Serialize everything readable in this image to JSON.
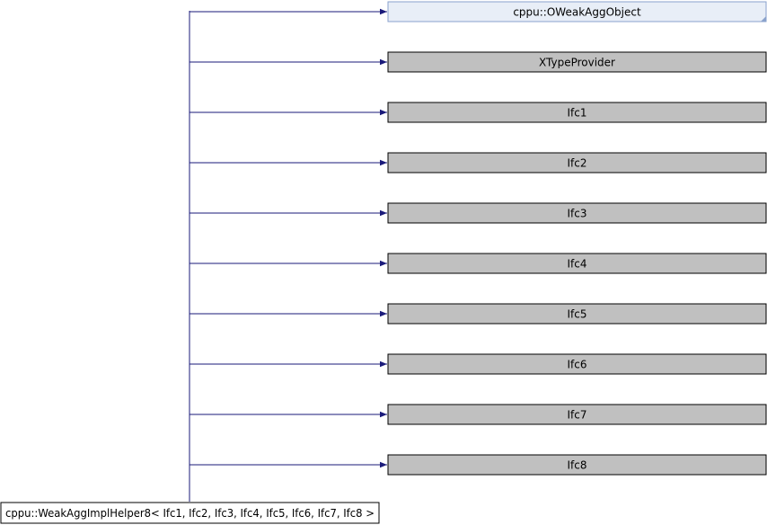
{
  "diagram": {
    "derived_class": {
      "label": "cppu::WeakAggImplHelper8< Ifc1, Ifc2, Ifc3, Ifc4, Ifc5, Ifc6, Ifc7, Ifc8 >"
    },
    "base_classes": [
      {
        "id": "oweakaggobject",
        "label": "cppu::OWeakAggObject",
        "style": "documented"
      },
      {
        "id": "xtypeprovider",
        "label": "XTypeProvider",
        "style": "undocumented"
      },
      {
        "id": "ifc1",
        "label": "Ifc1",
        "style": "undocumented"
      },
      {
        "id": "ifc2",
        "label": "Ifc2",
        "style": "undocumented"
      },
      {
        "id": "ifc3",
        "label": "Ifc3",
        "style": "undocumented"
      },
      {
        "id": "ifc4",
        "label": "Ifc4",
        "style": "undocumented"
      },
      {
        "id": "ifc5",
        "label": "Ifc5",
        "style": "undocumented"
      },
      {
        "id": "ifc6",
        "label": "Ifc6",
        "style": "undocumented"
      },
      {
        "id": "ifc7",
        "label": "Ifc7",
        "style": "undocumented"
      },
      {
        "id": "ifc8",
        "label": "Ifc8",
        "style": "undocumented"
      }
    ],
    "colors": {
      "edge": "#1a1a7a",
      "documented_fill": "#e8eef7",
      "documented_border": "#8aa2cc",
      "undocumented_fill": "#c0c0c0",
      "undocumented_border": "#000000",
      "derived_fill": "#ffffff",
      "derived_border": "#000000"
    }
  }
}
